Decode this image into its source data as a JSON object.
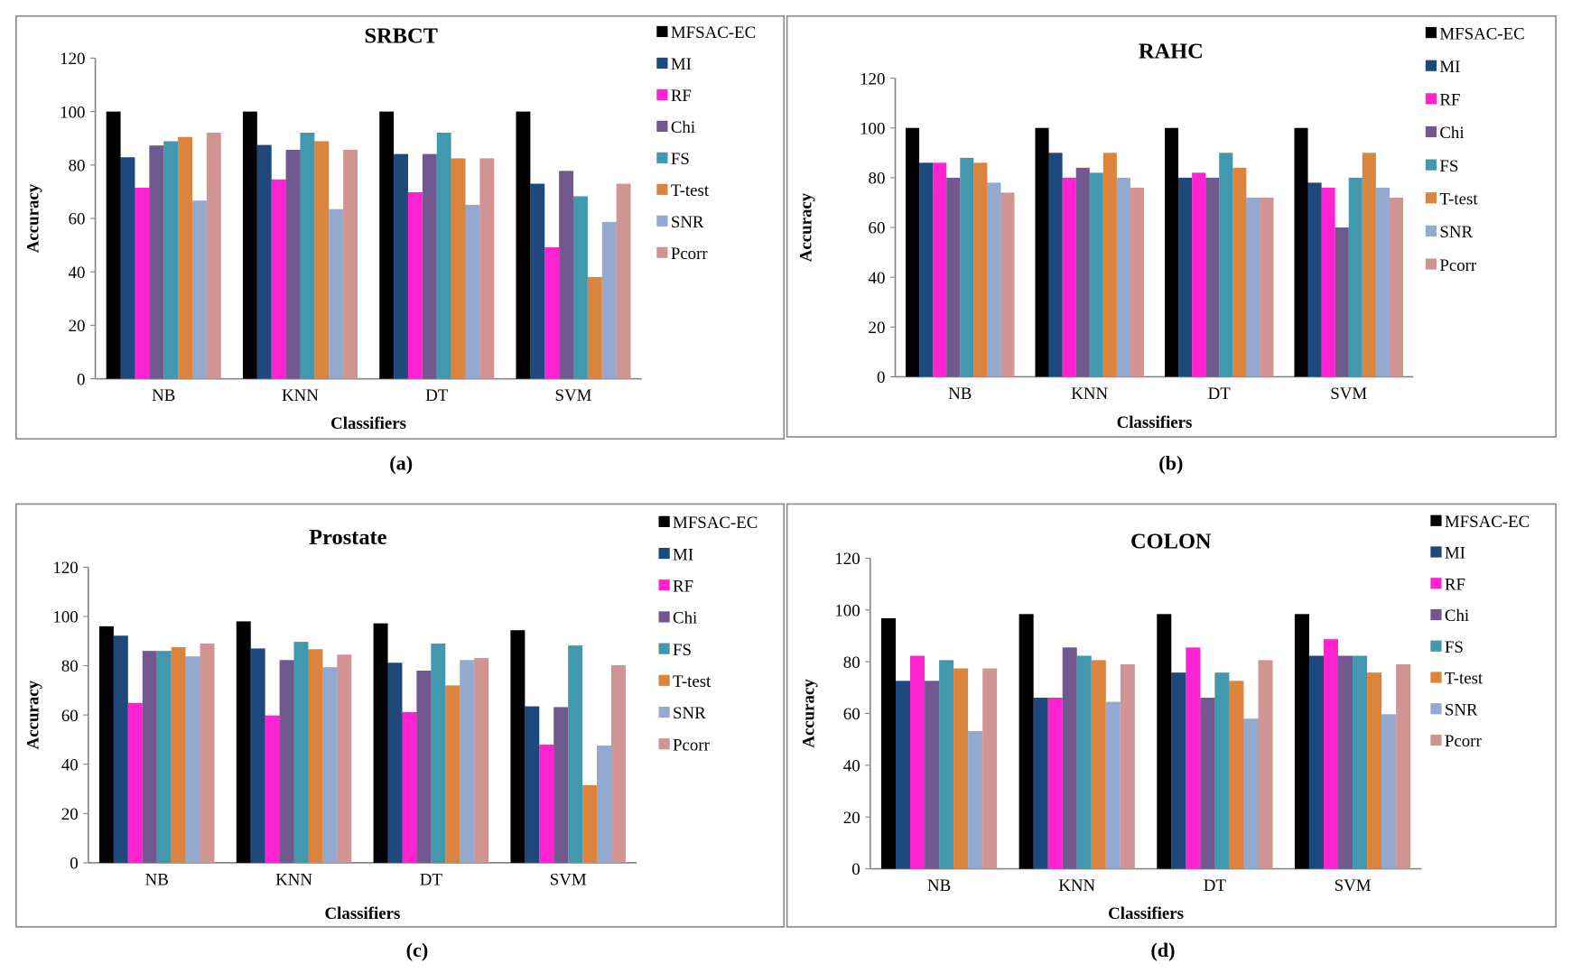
{
  "chart_data": [
    {
      "type": "bar",
      "title": "SRBCT",
      "caption": "(a)",
      "xlabel": "Classifiers",
      "ylabel": "Accuracy",
      "ylim": [
        0,
        120
      ],
      "yticks": [
        0,
        20,
        40,
        60,
        80,
        100,
        120
      ],
      "grid": false,
      "legend": "right",
      "categories": [
        "NB",
        "KNN",
        "DT",
        "SVM"
      ],
      "series": [
        {
          "name": "MFSAC-EC",
          "values": [
            100,
            100,
            100,
            100
          ]
        },
        {
          "name": "MI",
          "values": [
            82.9,
            87.5,
            84.1,
            73.0
          ]
        },
        {
          "name": "RF",
          "values": [
            71.5,
            74.6,
            69.8,
            49.2
          ]
        },
        {
          "name": "Chi",
          "values": [
            87.3,
            85.7,
            84.1,
            77.8
          ]
        },
        {
          "name": "FS",
          "values": [
            88.9,
            92.1,
            92.1,
            68.3
          ]
        },
        {
          "name": "T-test",
          "values": [
            90.5,
            88.9,
            82.5,
            38.1
          ]
        },
        {
          "name": "SNR",
          "values": [
            66.7,
            63.5,
            65.1,
            58.7
          ]
        },
        {
          "name": "Pcorr",
          "values": [
            92.1,
            85.7,
            82.5,
            73.0
          ]
        }
      ]
    },
    {
      "type": "bar",
      "title": "RAHC",
      "caption": "(b)",
      "xlabel": "Classifiers",
      "ylabel": "Accuracy",
      "ylim": [
        0,
        120
      ],
      "yticks": [
        0,
        20,
        40,
        60,
        80,
        100,
        120
      ],
      "grid": false,
      "legend": "right",
      "categories": [
        "NB",
        "KNN",
        "DT",
        "SVM"
      ],
      "series": [
        {
          "name": "MFSAC-EC",
          "values": [
            100,
            100,
            100,
            100
          ]
        },
        {
          "name": "MI",
          "values": [
            86,
            90,
            80,
            78
          ]
        },
        {
          "name": "RF",
          "values": [
            86,
            80,
            82,
            76
          ]
        },
        {
          "name": "Chi",
          "values": [
            80,
            84,
            80,
            60
          ]
        },
        {
          "name": "FS",
          "values": [
            88,
            82,
            90,
            80
          ]
        },
        {
          "name": "T-test",
          "values": [
            86,
            90,
            84,
            90
          ]
        },
        {
          "name": "SNR",
          "values": [
            78,
            80,
            72,
            76
          ]
        },
        {
          "name": "Pcorr",
          "values": [
            74,
            76,
            72,
            72
          ]
        }
      ]
    },
    {
      "type": "bar",
      "title": "Prostate",
      "caption": "(c)",
      "xlabel": "Classifiers",
      "ylabel": "Accuracy",
      "ylim": [
        0,
        120
      ],
      "yticks": [
        0,
        20,
        40,
        60,
        80,
        100,
        120
      ],
      "grid": false,
      "legend": "right",
      "categories": [
        "NB",
        "KNN",
        "DT",
        "SVM"
      ],
      "series": [
        {
          "name": "MFSAC-EC",
          "values": [
            96.0,
            98.0,
            97.2,
            94.4
          ]
        },
        {
          "name": "MI",
          "values": [
            92.2,
            87.0,
            81.2,
            63.5
          ]
        },
        {
          "name": "RF",
          "values": [
            64.9,
            59.8,
            61.2,
            48.0
          ]
        },
        {
          "name": "Chi",
          "values": [
            86.0,
            82.3,
            78.0,
            63.2
          ]
        },
        {
          "name": "FS",
          "values": [
            86.0,
            89.7,
            89.0,
            88.2
          ]
        },
        {
          "name": "T-test",
          "values": [
            87.5,
            86.7,
            72.0,
            31.5
          ]
        },
        {
          "name": "SNR",
          "values": [
            83.8,
            79.4,
            82.3,
            47.6
          ]
        },
        {
          "name": "Pcorr",
          "values": [
            89.0,
            84.5,
            83.1,
            80.2
          ]
        }
      ]
    },
    {
      "type": "bar",
      "title": "COLON",
      "caption": "(d)",
      "xlabel": "Classifiers",
      "ylabel": "Accuracy",
      "ylim": [
        0,
        120
      ],
      "yticks": [
        0,
        20,
        40,
        60,
        80,
        100,
        120
      ],
      "grid": false,
      "legend": "right",
      "categories": [
        "NB",
        "KNN",
        "DT",
        "SVM"
      ],
      "series": [
        {
          "name": "MFSAC-EC",
          "values": [
            96.8,
            98.4,
            98.4,
            98.4
          ]
        },
        {
          "name": "MI",
          "values": [
            72.6,
            66.1,
            75.8,
            82.3
          ]
        },
        {
          "name": "RF",
          "values": [
            82.3,
            66.1,
            85.5,
            88.7
          ]
        },
        {
          "name": "Chi",
          "values": [
            72.6,
            85.5,
            66.1,
            82.3
          ]
        },
        {
          "name": "FS",
          "values": [
            80.6,
            82.3,
            75.8,
            82.3
          ]
        },
        {
          "name": "T-test",
          "values": [
            77.4,
            80.6,
            72.6,
            75.8
          ]
        },
        {
          "name": "SNR",
          "values": [
            53.2,
            64.5,
            58.0,
            59.7
          ]
        },
        {
          "name": "Pcorr",
          "values": [
            77.4,
            79.0,
            80.6,
            79.0
          ]
        }
      ]
    }
  ],
  "series_colors": {
    "MFSAC-EC": "#000000",
    "MI": "#1f497d",
    "RF": "#ff22d0",
    "Chi": "#71588f",
    "FS": "#4198af",
    "T-test": "#db843d",
    "SNR": "#93a9cf",
    "Pcorr": "#d09593"
  }
}
